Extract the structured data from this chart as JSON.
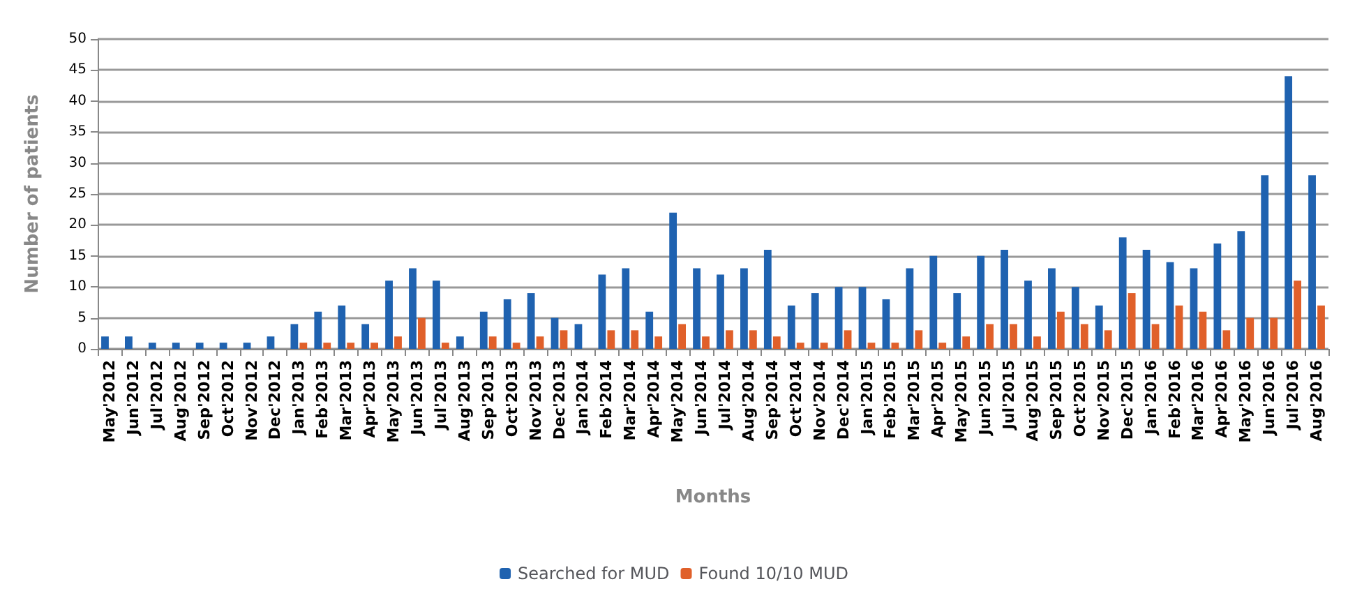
{
  "chart_data": {
    "type": "bar",
    "xlabel": "Months",
    "ylabel": "Number of patients",
    "categories": [
      "May'2012",
      "Jun'2012",
      "Jul'2012",
      "Aug'2012",
      "Sep'2012",
      "Oct'2012",
      "Nov'2012",
      "Dec'2012",
      "Jan'2013",
      "Feb'2013",
      "Mar'2013",
      "Apr'2013",
      "May'2013",
      "Jun'2013",
      "Jul'2013",
      "Aug'2013",
      "Sep'2013",
      "Oct'2013",
      "Nov'2013",
      "Dec'2013",
      "Jan'2014",
      "Feb'2014",
      "Mar'2014",
      "Apr'2014",
      "May'2014",
      "Jun'2014",
      "Jul'2014",
      "Aug'2014",
      "Sep'2014",
      "Oct'2014",
      "Nov'2014",
      "Dec'2014",
      "Jan'2015",
      "Feb'2015",
      "Mar'2015",
      "Apr'2015",
      "May'2015",
      "Jun'2015",
      "Jul'2015",
      "Aug'2015",
      "Sep'2015",
      "Oct'2015",
      "Nov'2015",
      "Dec'2015",
      "Jan'2016",
      "Feb'2016",
      "Mar'2016",
      "Apr'2016",
      "May'2016",
      "Jun'2016",
      "Jul'2016",
      "Aug'2016"
    ],
    "series": [
      {
        "name": "Searched for MUD",
        "color": "#1f62b0",
        "values": [
          2,
          2,
          1,
          1,
          1,
          1,
          1,
          2,
          4,
          6,
          7,
          4,
          11,
          13,
          11,
          2,
          6,
          8,
          9,
          5,
          4,
          12,
          13,
          6,
          22,
          13,
          12,
          13,
          16,
          7,
          9,
          10,
          10,
          8,
          13,
          15,
          9,
          15,
          16,
          11,
          13,
          10,
          7,
          18,
          16,
          14,
          13,
          17,
          19,
          28,
          44,
          28
        ]
      },
      {
        "name": "Found 10/10 MUD",
        "color": "#e0602a",
        "values": [
          0,
          0,
          0,
          0,
          0,
          0,
          0,
          0,
          1,
          1,
          1,
          1,
          2,
          5,
          1,
          0,
          2,
          1,
          2,
          3,
          0,
          3,
          3,
          2,
          4,
          2,
          3,
          3,
          2,
          1,
          1,
          3,
          1,
          1,
          3,
          1,
          2,
          4,
          4,
          2,
          6,
          4,
          3,
          9,
          4,
          7,
          6,
          3,
          5,
          5,
          11,
          7
        ]
      }
    ],
    "ylim": [
      0,
      50
    ],
    "yticks": [
      0,
      5,
      10,
      15,
      20,
      25,
      30,
      35,
      40,
      45,
      50
    ],
    "grid": "y",
    "legend": "bottom"
  }
}
